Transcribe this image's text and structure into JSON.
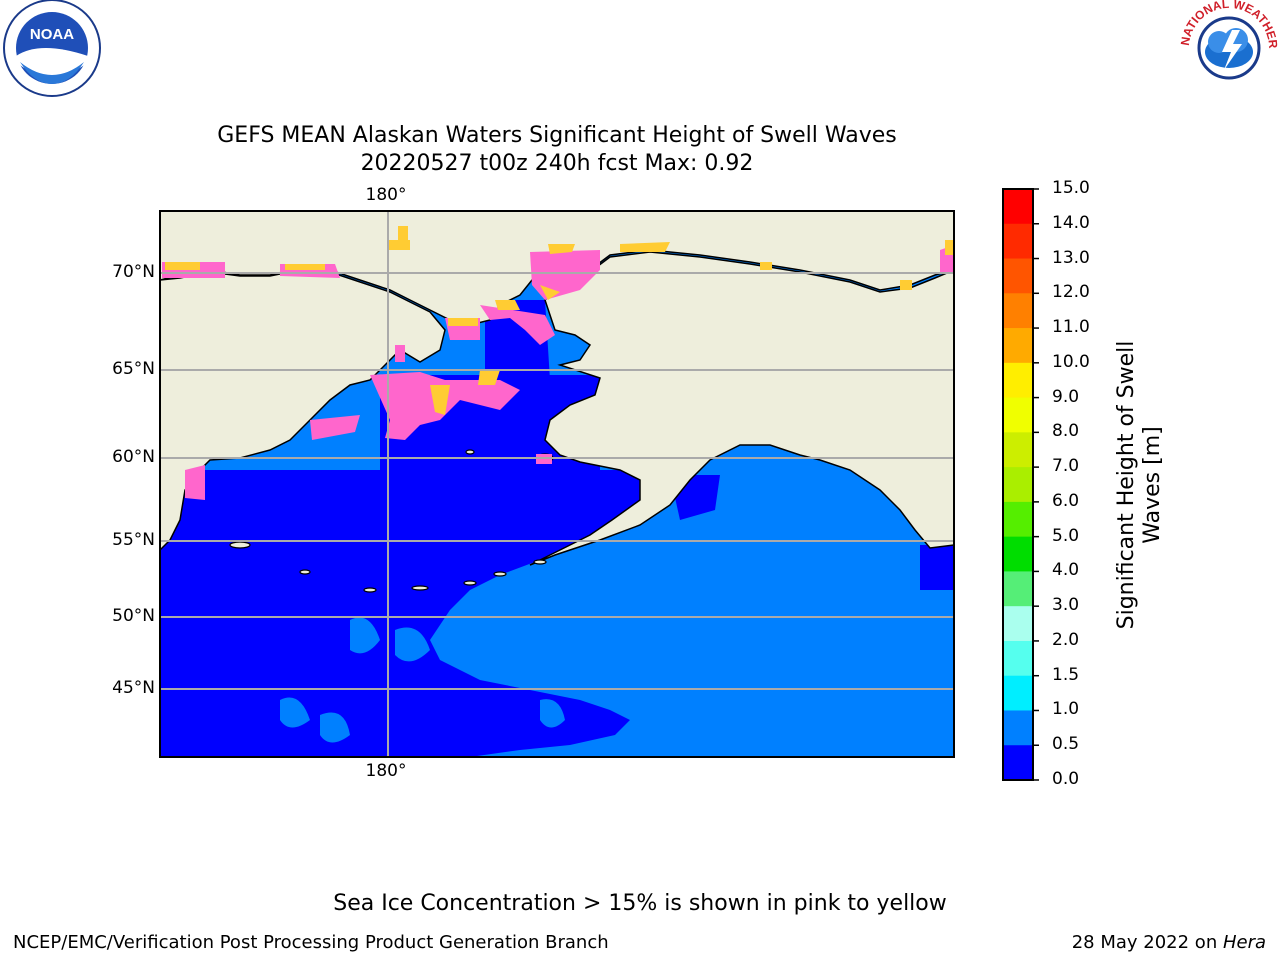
{
  "header": {
    "title_line1": "GEFS MEAN Alaskan Waters Significant Height of Swell Waves",
    "title_line2": "20220527 t00z 240h fcst   Max: 0.92"
  },
  "map": {
    "lat_labels": [
      "70°N",
      "65°N",
      "60°N",
      "55°N",
      "50°N",
      "45°N"
    ],
    "lon_label_top": "180°",
    "lon_label_bottom": "180°",
    "colors": {
      "land": "#eeeedc",
      "water_low": "#0000ff",
      "water_high": "#0080ff",
      "ice_pink": "#ff66cc",
      "ice_yellow": "#ffcc33",
      "grid": "#aaaaaa"
    }
  },
  "colorbar": {
    "label_line1": "Significant Height of Swell",
    "label_line2": "Waves [m]",
    "ticks": [
      "15.0",
      "14.0",
      "13.0",
      "12.0",
      "11.0",
      "10.0",
      "9.0",
      "8.0",
      "7.0",
      "6.0",
      "5.0",
      "4.0",
      "3.0",
      "2.0",
      "1.5",
      "1.0",
      "0.5",
      "0.0"
    ],
    "bins": [
      {
        "range": "14.0-15.0",
        "color": "#ff0000"
      },
      {
        "range": "13.0-14.0",
        "color": "#ff2a00"
      },
      {
        "range": "12.0-13.0",
        "color": "#ff5500"
      },
      {
        "range": "11.0-12.0",
        "color": "#ff8000"
      },
      {
        "range": "10.0-11.0",
        "color": "#ffaa00"
      },
      {
        "range": "9.0-10.0",
        "color": "#ffee00"
      },
      {
        "range": "8.0-9.0",
        "color": "#f0ff00"
      },
      {
        "range": "7.0-8.0",
        "color": "#ccee00"
      },
      {
        "range": "6.0-7.0",
        "color": "#aaee00"
      },
      {
        "range": "5.0-6.0",
        "color": "#55ee00"
      },
      {
        "range": "4.0-5.0",
        "color": "#00dd00"
      },
      {
        "range": "3.0-4.0",
        "color": "#55ee77"
      },
      {
        "range": "2.0-3.0",
        "color": "#aaffee"
      },
      {
        "range": "1.5-2.0",
        "color": "#55ffee"
      },
      {
        "range": "1.0-1.5",
        "color": "#00eeff"
      },
      {
        "range": "0.5-1.0",
        "color": "#0080ff"
      },
      {
        "range": "0.0-0.5",
        "color": "#0000ff"
      }
    ]
  },
  "logos": {
    "left_text": "NOAA",
    "right_text": "NATIONAL WEATHER SERVICE"
  },
  "footer": {
    "ice_note": "Sea Ice Concentration > 15% is shown in pink to yellow",
    "credit": "NCEP/EMC/Verification Post Processing Product Generation Branch",
    "date_prefix": "28 May 2022 on ",
    "machine": "Hera"
  }
}
